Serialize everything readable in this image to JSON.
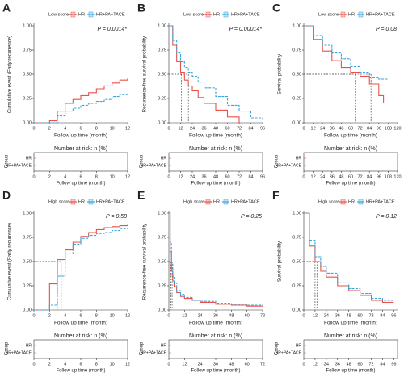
{
  "chart_data": [
    {
      "type": "line",
      "panel": "A",
      "legend_title": "Low score",
      "p_text": "P = 0.0014*",
      "ylabel": "Cumulative event (Early recurrence)",
      "xlabel": "Follow up time (month)",
      "risk_title": "Number at risk: n (%)",
      "risk_group_label": "Group",
      "xlim": [
        0,
        12
      ],
      "xticks": [
        0,
        2,
        4,
        6,
        8,
        10,
        12
      ],
      "ylim": [
        0,
        1
      ],
      "yticks": [
        {
          "value": 0,
          "label": "0.00"
        },
        {
          "value": 0.25,
          "label": "0.25"
        },
        {
          "value": 0.5,
          "label": "0.50"
        },
        {
          "value": 0.75,
          "label": "0.75"
        },
        {
          "value": 1,
          "label": "1.00"
        }
      ],
      "series": [
        {
          "name": "HR",
          "color": "#e8524a",
          "x": [
            0,
            2,
            3,
            4,
            5,
            6,
            7,
            8,
            9,
            10,
            11,
            12
          ],
          "values": [
            0,
            0.02,
            0.12,
            0.2,
            0.24,
            0.28,
            0.31,
            0.35,
            0.38,
            0.41,
            0.44,
            0.46
          ]
        },
        {
          "name": "HR+PA+TACE",
          "color": "#3aa6d8",
          "x": [
            0,
            2,
            3,
            4,
            5,
            6,
            7,
            8,
            9,
            10,
            11,
            12
          ],
          "values": [
            0,
            0,
            0.07,
            0.12,
            0.15,
            0.18,
            0.2,
            0.22,
            0.24,
            0.27,
            0.29,
            0.3
          ]
        }
      ]
    },
    {
      "type": "line",
      "panel": "B",
      "legend_title": "Low score",
      "p_text": "P = 0.00014*",
      "ylabel": "Recurrence-free survival probability",
      "xlabel": "Follow up time (month)",
      "risk_title": "Number at risk: n (%)",
      "risk_group_label": "Group",
      "xlim": [
        0,
        96
      ],
      "xticks": [
        0,
        12,
        24,
        36,
        48,
        60,
        72,
        84,
        96
      ],
      "ylim": [
        0,
        1
      ],
      "yticks": [
        {
          "value": 0,
          "label": "0.00"
        },
        {
          "value": 0.25,
          "label": "0.25"
        },
        {
          "value": 0.5,
          "label": "0.50"
        },
        {
          "value": 0.75,
          "label": "0.75"
        },
        {
          "value": 1,
          "label": "1.00"
        }
      ],
      "median_y": 0.5,
      "series": [
        {
          "name": "HR",
          "color": "#e8524a",
          "median": 13,
          "x": [
            0,
            4,
            8,
            12,
            16,
            20,
            24,
            30,
            36,
            48,
            60,
            72
          ],
          "values": [
            1,
            0.8,
            0.63,
            0.52,
            0.44,
            0.38,
            0.33,
            0.26,
            0.2,
            0.13,
            0.06,
            0
          ]
        },
        {
          "name": "HR+PA+TACE",
          "color": "#3aa6d8",
          "median": 20,
          "x": [
            0,
            4,
            8,
            12,
            16,
            20,
            24,
            30,
            36,
            48,
            60,
            72,
            84,
            96
          ],
          "values": [
            1,
            0.85,
            0.72,
            0.63,
            0.57,
            0.52,
            0.48,
            0.42,
            0.36,
            0.27,
            0.18,
            0.12,
            0.05,
            0.02
          ]
        }
      ]
    },
    {
      "type": "line",
      "panel": "C",
      "legend_title": "Low score",
      "p_text": "P = 0.08",
      "ylabel": "Survival probability",
      "xlabel": "Follow up time (month)",
      "risk_title": "Number at risk: n (%)",
      "risk_group_label": "Group",
      "xlim": [
        0,
        120
      ],
      "xticks": [
        0,
        12,
        24,
        36,
        48,
        60,
        72,
        84,
        96,
        108,
        120
      ],
      "ylim": [
        0,
        1
      ],
      "yticks": [
        {
          "value": 0,
          "label": "0.00"
        },
        {
          "value": 0.25,
          "label": "0.25"
        },
        {
          "value": 0.5,
          "label": "0.50"
        },
        {
          "value": 0.75,
          "label": "0.75"
        },
        {
          "value": 1,
          "label": "1.00"
        }
      ],
      "median_y": 0.5,
      "series": [
        {
          "name": "HR",
          "color": "#e8524a",
          "median": 66,
          "x": [
            0,
            12,
            24,
            36,
            48,
            60,
            72,
            84,
            96,
            102
          ],
          "values": [
            1,
            0.86,
            0.74,
            0.64,
            0.57,
            0.52,
            0.48,
            0.4,
            0.28,
            0.2
          ]
        },
        {
          "name": "HR+PA+TACE",
          "color": "#3aa6d8",
          "median": 86,
          "x": [
            0,
            12,
            24,
            36,
            48,
            60,
            72,
            84,
            96,
            108
          ],
          "values": [
            1,
            0.9,
            0.8,
            0.72,
            0.66,
            0.58,
            0.52,
            0.47,
            0.45,
            0.45
          ]
        }
      ]
    },
    {
      "type": "line",
      "panel": "D",
      "legend_title": "High score",
      "p_text": "P = 0.58",
      "ylabel": "Cumulative event (Early recurrence)",
      "xlabel": "Follow up time (month)",
      "risk_title": "Number at risk: n (%)",
      "risk_group_label": "Group",
      "xlim": [
        0,
        12
      ],
      "xticks": [
        0,
        2,
        4,
        6,
        8,
        10,
        12
      ],
      "ylim": [
        0,
        1
      ],
      "yticks": [
        {
          "value": 0,
          "label": "0.00"
        },
        {
          "value": 0.25,
          "label": "0.25"
        },
        {
          "value": 0.5,
          "label": "0.50"
        },
        {
          "value": 0.75,
          "label": "0.75"
        },
        {
          "value": 1,
          "label": "1.00"
        }
      ],
      "median_y": 0.5,
      "series": [
        {
          "name": "HR",
          "color": "#e8524a",
          "median": 3,
          "x": [
            0,
            2,
            3,
            4,
            5,
            6,
            7,
            8,
            9,
            10,
            11,
            12
          ],
          "values": [
            0,
            0.27,
            0.52,
            0.62,
            0.7,
            0.76,
            0.8,
            0.83,
            0.85,
            0.86,
            0.87,
            0.88
          ]
        },
        {
          "name": "HR+PA+TACE",
          "color": "#3aa6d8",
          "median": 3.5,
          "x": [
            0,
            2,
            3,
            4,
            5,
            6,
            7,
            8,
            9,
            10,
            11,
            12
          ],
          "values": [
            0,
            0.05,
            0.35,
            0.58,
            0.68,
            0.74,
            0.77,
            0.79,
            0.8,
            0.82,
            0.84,
            0.85
          ]
        }
      ]
    },
    {
      "type": "line",
      "panel": "E",
      "legend_title": "High score",
      "p_text": "P = 0.25",
      "ylabel": "Recurrence-free survival probability",
      "xlabel": "Follow up time (month)",
      "risk_title": "Number at risk: n (%)",
      "risk_group_label": "Group",
      "xlim": [
        0,
        72
      ],
      "xticks": [
        0,
        12,
        24,
        36,
        48,
        60,
        72
      ],
      "ylim": [
        0,
        1
      ],
      "yticks": [
        {
          "value": 0,
          "label": "0.00"
        },
        {
          "value": 0.25,
          "label": "0.25"
        },
        {
          "value": 0.5,
          "label": "0.50"
        },
        {
          "value": 0.75,
          "label": "0.75"
        },
        {
          "value": 1,
          "label": "1.00"
        }
      ],
      "median_y": 0.5,
      "series": [
        {
          "name": "HR",
          "color": "#e8524a",
          "median": 1.5,
          "x": [
            0,
            1,
            2,
            3,
            4,
            6,
            9,
            12,
            18,
            24,
            36,
            48,
            60,
            72
          ],
          "values": [
            1,
            0.6,
            0.4,
            0.3,
            0.24,
            0.18,
            0.14,
            0.12,
            0.1,
            0.08,
            0.06,
            0.05,
            0.04,
            0.04
          ]
        },
        {
          "name": "HR+PA+TACE",
          "color": "#3aa6d8",
          "median": 2.5,
          "x": [
            0,
            1,
            2,
            3,
            4,
            6,
            9,
            12,
            18,
            24,
            36,
            48,
            60,
            72
          ],
          "values": [
            1,
            0.7,
            0.48,
            0.35,
            0.28,
            0.2,
            0.16,
            0.13,
            0.1,
            0.09,
            0.07,
            0.06,
            0.05,
            0.05
          ]
        }
      ]
    },
    {
      "type": "line",
      "panel": "F",
      "legend_title": "High score",
      "p_text": "P = 0.12",
      "ylabel": "Survival probability",
      "xlabel": "Follow up time (month)",
      "risk_title": "Number at risk: n (%)",
      "risk_group_label": "Group",
      "xlim": [
        0,
        100
      ],
      "xticks": [
        0,
        12,
        24,
        36,
        48,
        60,
        72,
        84,
        96
      ],
      "ylim": [
        0,
        1
      ],
      "yticks": [
        {
          "value": 0,
          "label": "0.00"
        },
        {
          "value": 0.25,
          "label": "0.25"
        },
        {
          "value": 0.5,
          "label": "0.50"
        },
        {
          "value": 0.75,
          "label": "0.75"
        },
        {
          "value": 1,
          "label": "1.00"
        }
      ],
      "median_y": 0.5,
      "series": [
        {
          "name": "HR",
          "color": "#e8524a",
          "median": 12,
          "x": [
            0,
            6,
            12,
            18,
            24,
            36,
            48,
            60,
            72,
            84,
            96
          ],
          "values": [
            1,
            0.66,
            0.5,
            0.4,
            0.34,
            0.25,
            0.2,
            0.15,
            0.1,
            0.08,
            0.08
          ]
        },
        {
          "name": "HR+PA+TACE",
          "color": "#3aa6d8",
          "median": 14,
          "x": [
            0,
            6,
            12,
            18,
            24,
            36,
            48,
            60,
            72,
            84,
            96
          ],
          "values": [
            1,
            0.72,
            0.55,
            0.45,
            0.38,
            0.28,
            0.22,
            0.17,
            0.12,
            0.1,
            0.1
          ]
        }
      ]
    }
  ]
}
